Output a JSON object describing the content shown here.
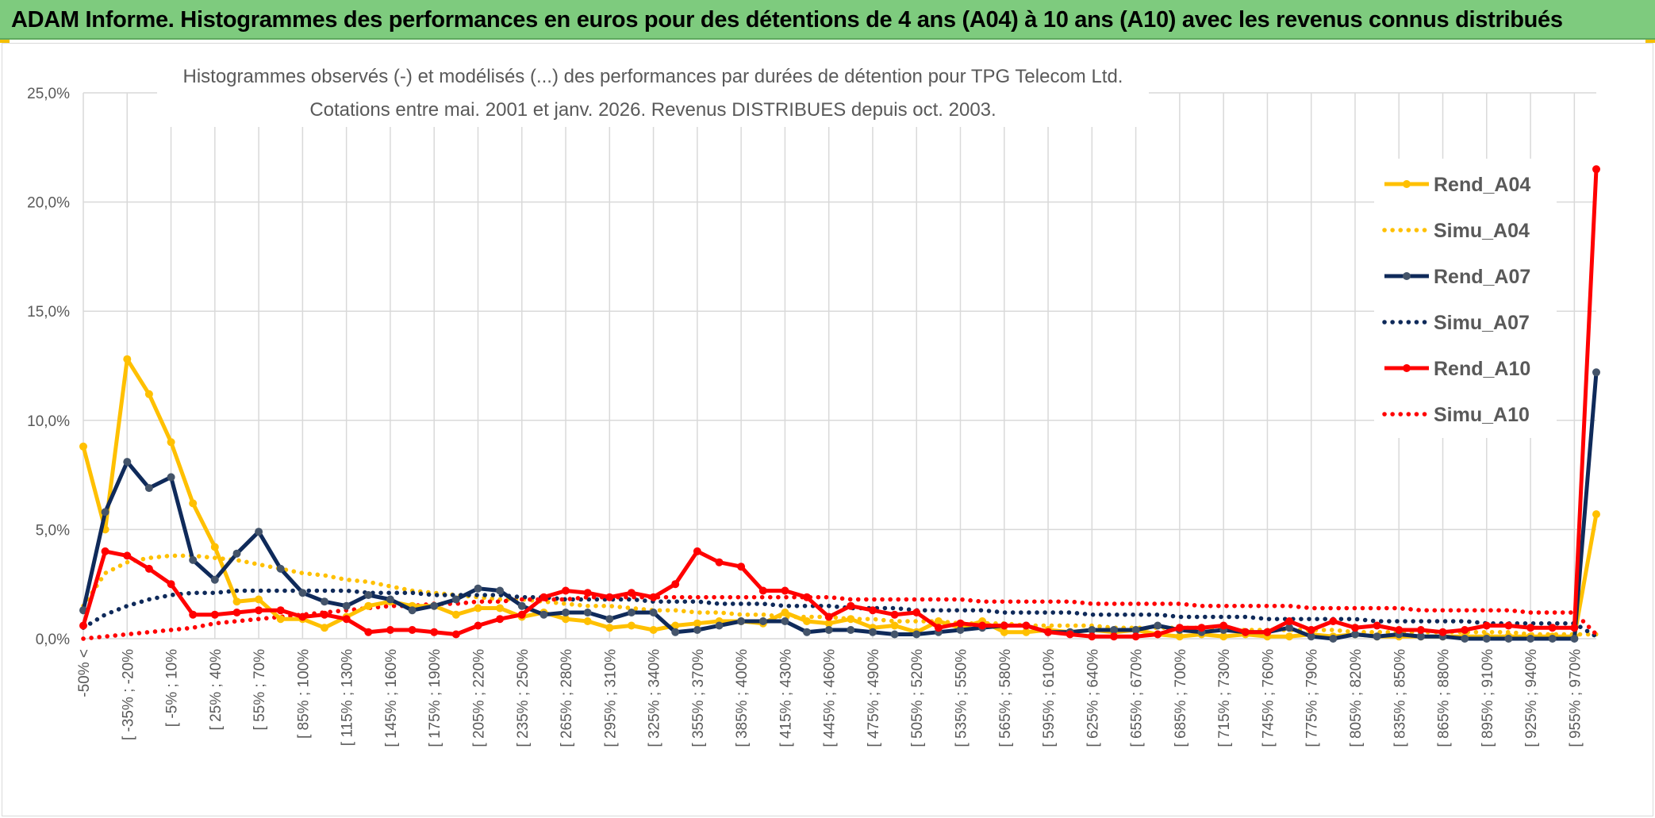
{
  "header": {
    "title": "ADAM Informe. Histogrammes des performances en euros pour des détentions de 4 ans (A04) à 10 ans (A10) avec les revenus connus distribués"
  },
  "chart_data": {
    "type": "line",
    "title_line1": "Histogrammes observés (-) et modélisés (...) des performances par durées de détention pour TPG Telecom Ltd.",
    "title_line2": "Cotations entre mai. 2001 et janv. 2026. Revenus DISTRIBUES depuis oct. 2003.",
    "ylim": [
      0,
      25
    ],
    "yticks": [
      0,
      5,
      10,
      15,
      20,
      25
    ],
    "ytick_labels": [
      "0,0%",
      "5,0%",
      "10,0%",
      "15,0%",
      "20,0%",
      "25,0%"
    ],
    "x_tick_labels": [
      "-50% <",
      "[ -35% ; -20%",
      "[ -5% ; 10%",
      "[ 25% ; 40%",
      "[ 55% ; 70%",
      "[ 85% ; 100%",
      "[ 115% ; 130%",
      "[ 145% ; 160%",
      "[ 175% ; 190%",
      "[ 205% ; 220%",
      "[ 235% ; 250%",
      "[ 265% ; 280%",
      "[ 295% ; 310%",
      "[ 325% ; 340%",
      "[ 355% ; 370%",
      "[ 385% ; 400%",
      "[ 415% ; 430%",
      "[ 445% ; 460%",
      "[ 475% ; 490%",
      "[ 505% ; 520%",
      "[ 535% ; 550%",
      "[ 565% ; 580%",
      "[ 595% ; 610%",
      "[ 625% ; 640%",
      "[ 655% ; 670%",
      "[ 685% ; 700%",
      "[ 715% ; 730%",
      "[ 745% ; 760%",
      "[ 775% ; 790%",
      "[ 805% ; 820%",
      "[ 835% ; 850%",
      "[ 865% ; 880%",
      "[ 895% ; 910%",
      "[ 925% ; 940%",
      "[ 955% ; 970%"
    ],
    "n_points": 70,
    "series": [
      {
        "name": "Rend_A04",
        "style": "solid",
        "color": "#ffc000",
        "values": [
          8.8,
          5.0,
          12.8,
          11.2,
          9.0,
          6.2,
          4.2,
          1.7,
          1.8,
          0.9,
          0.9,
          0.5,
          1.0,
          1.5,
          1.7,
          1.5,
          1.5,
          1.1,
          1.4,
          1.4,
          1.0,
          1.2,
          0.9,
          0.8,
          0.5,
          0.6,
          0.4,
          0.6,
          0.7,
          0.8,
          0.8,
          0.7,
          1.2,
          0.8,
          0.7,
          0.9,
          0.5,
          0.6,
          0.3,
          0.8,
          0.5,
          0.8,
          0.3,
          0.3,
          0.4,
          0.3,
          0.4,
          0.3,
          0.4,
          0.2,
          0.1,
          0.2,
          0.1,
          0.2,
          0.1,
          0.1,
          0.2,
          0.1,
          0.2,
          0.1,
          0.1,
          0.1,
          0.1,
          0.1,
          0.1,
          0.1,
          0.1,
          0.1,
          0.1,
          5.7
        ]
      },
      {
        "name": "Simu_A04",
        "style": "dotted",
        "color": "#ffc000",
        "values": [
          1.5,
          3.0,
          3.5,
          3.7,
          3.8,
          3.8,
          3.7,
          3.6,
          3.4,
          3.2,
          3.0,
          2.9,
          2.7,
          2.6,
          2.4,
          2.2,
          2.1,
          2.0,
          1.9,
          1.8,
          1.8,
          1.7,
          1.6,
          1.5,
          1.5,
          1.4,
          1.3,
          1.3,
          1.2,
          1.2,
          1.1,
          1.1,
          1.0,
          1.0,
          1.0,
          0.9,
          0.9,
          0.8,
          0.8,
          0.8,
          0.7,
          0.7,
          0.7,
          0.6,
          0.6,
          0.6,
          0.6,
          0.5,
          0.5,
          0.5,
          0.5,
          0.5,
          0.4,
          0.4,
          0.4,
          0.4,
          0.4,
          0.4,
          0.3,
          0.3,
          0.3,
          0.3,
          0.3,
          0.3,
          0.3,
          0.3,
          0.2,
          0.2,
          0.2,
          0.2
        ]
      },
      {
        "name": "Rend_A07",
        "style": "solid",
        "color": "#0f2a5a",
        "values": [
          1.3,
          5.8,
          8.1,
          6.9,
          7.4,
          3.6,
          2.7,
          3.9,
          4.9,
          3.2,
          2.1,
          1.7,
          1.5,
          2.0,
          1.8,
          1.3,
          1.5,
          1.8,
          2.3,
          2.2,
          1.5,
          1.1,
          1.2,
          1.2,
          0.9,
          1.2,
          1.2,
          0.3,
          0.4,
          0.6,
          0.8,
          0.8,
          0.8,
          0.3,
          0.4,
          0.4,
          0.3,
          0.2,
          0.2,
          0.3,
          0.4,
          0.5,
          0.6,
          0.6,
          0.3,
          0.3,
          0.4,
          0.4,
          0.4,
          0.6,
          0.4,
          0.3,
          0.4,
          0.3,
          0.3,
          0.5,
          0.1,
          0.0,
          0.2,
          0.1,
          0.2,
          0.1,
          0.1,
          0.0,
          0.0,
          0.0,
          0.0,
          0.0,
          0.0,
          12.2
        ]
      },
      {
        "name": "Simu_A07",
        "style": "dotted",
        "color": "#0f2a5a",
        "values": [
          0.5,
          1.1,
          1.5,
          1.8,
          2.0,
          2.1,
          2.1,
          2.2,
          2.2,
          2.2,
          2.2,
          2.2,
          2.2,
          2.1,
          2.1,
          2.1,
          2.0,
          2.0,
          2.0,
          2.0,
          1.9,
          1.9,
          1.8,
          1.8,
          1.8,
          1.8,
          1.7,
          1.7,
          1.7,
          1.6,
          1.6,
          1.6,
          1.5,
          1.5,
          1.5,
          1.4,
          1.4,
          1.4,
          1.3,
          1.3,
          1.3,
          1.3,
          1.2,
          1.2,
          1.2,
          1.2,
          1.1,
          1.1,
          1.1,
          1.1,
          1.0,
          1.0,
          1.0,
          1.0,
          0.9,
          0.9,
          0.9,
          0.9,
          0.9,
          0.8,
          0.8,
          0.8,
          0.8,
          0.8,
          0.7,
          0.7,
          0.7,
          0.7,
          0.7,
          0.1
        ]
      },
      {
        "name": "Rend_A10",
        "style": "solid",
        "color": "#ff0000",
        "values": [
          0.6,
          4.0,
          3.8,
          3.2,
          2.5,
          1.1,
          1.1,
          1.2,
          1.3,
          1.3,
          1.0,
          1.1,
          0.9,
          0.3,
          0.4,
          0.4,
          0.3,
          0.2,
          0.6,
          0.9,
          1.1,
          1.9,
          2.2,
          2.1,
          1.9,
          2.1,
          1.9,
          2.5,
          4.0,
          3.5,
          3.3,
          2.2,
          2.2,
          1.9,
          1.0,
          1.5,
          1.3,
          1.1,
          1.2,
          0.5,
          0.7,
          0.6,
          0.6,
          0.6,
          0.3,
          0.2,
          0.1,
          0.1,
          0.1,
          0.2,
          0.5,
          0.5,
          0.6,
          0.3,
          0.3,
          0.8,
          0.4,
          0.8,
          0.5,
          0.6,
          0.4,
          0.4,
          0.3,
          0.4,
          0.6,
          0.6,
          0.5,
          0.5,
          0.5,
          21.5
        ]
      },
      {
        "name": "Simu_A10",
        "style": "dotted",
        "color": "#ff0000",
        "values": [
          0.0,
          0.1,
          0.2,
          0.3,
          0.4,
          0.5,
          0.7,
          0.8,
          0.9,
          1.0,
          1.1,
          1.2,
          1.3,
          1.4,
          1.5,
          1.5,
          1.6,
          1.6,
          1.7,
          1.7,
          1.8,
          1.8,
          1.8,
          1.9,
          1.9,
          1.9,
          1.9,
          1.9,
          1.9,
          1.9,
          1.9,
          1.9,
          1.9,
          1.9,
          1.9,
          1.8,
          1.8,
          1.8,
          1.8,
          1.8,
          1.8,
          1.7,
          1.7,
          1.7,
          1.7,
          1.7,
          1.6,
          1.6,
          1.6,
          1.6,
          1.6,
          1.5,
          1.5,
          1.5,
          1.5,
          1.5,
          1.4,
          1.4,
          1.4,
          1.4,
          1.4,
          1.3,
          1.3,
          1.3,
          1.3,
          1.3,
          1.2,
          1.2,
          1.2,
          0.2
        ]
      }
    ],
    "legend_position": "right"
  }
}
